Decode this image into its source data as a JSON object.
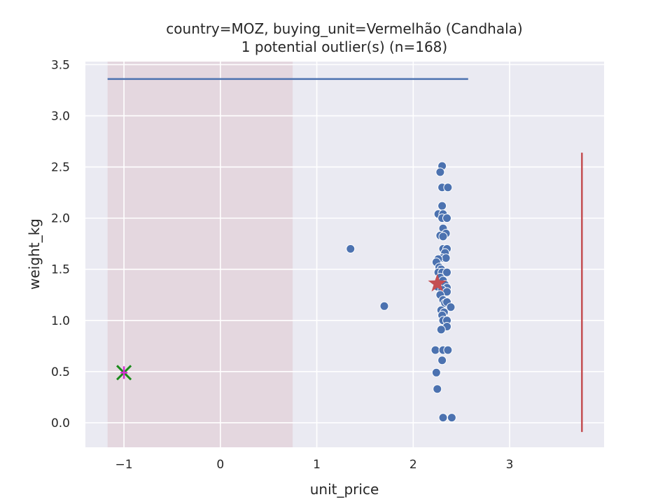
{
  "chart_data": {
    "type": "scatter",
    "title_line1": "country=MOZ, buying_unit=Vermelhão (Candhala)",
    "title_line2": "1 potential outlier(s) (n=168)",
    "xlabel": "unit_price",
    "ylabel": "weight_kg",
    "xlim": [
      -1.4,
      3.98
    ],
    "ylim": [
      -0.24,
      3.53
    ],
    "x_ticks": [
      -1,
      0,
      1,
      2,
      3
    ],
    "x_tick_labels": [
      "−1",
      "0",
      "1",
      "2",
      "3"
    ],
    "y_ticks": [
      0.0,
      0.5,
      1.0,
      1.5,
      2.0,
      2.5,
      3.0,
      3.5
    ],
    "y_tick_labels": [
      "0.0",
      "0.5",
      "1.0",
      "1.5",
      "2.0",
      "2.5",
      "3.0",
      "3.5"
    ],
    "grid": true,
    "shaded_x_range": [
      -1.17,
      0.75
    ],
    "horizontal_line": {
      "y": 3.36,
      "x_from": -1.17,
      "x_to": 2.57
    },
    "vertical_line": {
      "x": 3.75,
      "y_from": -0.09,
      "y_to": 2.64
    },
    "points": [
      {
        "x": 2.3,
        "y": 2.51
      },
      {
        "x": 2.28,
        "y": 2.45
      },
      {
        "x": 2.3,
        "y": 2.3
      },
      {
        "x": 2.36,
        "y": 2.3
      },
      {
        "x": 2.3,
        "y": 2.12
      },
      {
        "x": 2.26,
        "y": 2.04
      },
      {
        "x": 2.31,
        "y": 2.04
      },
      {
        "x": 2.3,
        "y": 2.0
      },
      {
        "x": 2.35,
        "y": 2.0
      },
      {
        "x": 2.31,
        "y": 1.9
      },
      {
        "x": 2.34,
        "y": 1.85
      },
      {
        "x": 2.28,
        "y": 1.83
      },
      {
        "x": 2.31,
        "y": 1.82
      },
      {
        "x": 1.35,
        "y": 1.7
      },
      {
        "x": 2.31,
        "y": 1.7
      },
      {
        "x": 2.35,
        "y": 1.7
      },
      {
        "x": 2.33,
        "y": 1.66
      },
      {
        "x": 2.3,
        "y": 1.61
      },
      {
        "x": 2.34,
        "y": 1.61
      },
      {
        "x": 2.26,
        "y": 1.6
      },
      {
        "x": 2.24,
        "y": 1.57
      },
      {
        "x": 2.27,
        "y": 1.52
      },
      {
        "x": 2.29,
        "y": 1.5
      },
      {
        "x": 2.26,
        "y": 1.47
      },
      {
        "x": 2.3,
        "y": 1.47
      },
      {
        "x": 2.35,
        "y": 1.47
      },
      {
        "x": 2.28,
        "y": 1.42
      },
      {
        "x": 2.31,
        "y": 1.39
      },
      {
        "x": 2.33,
        "y": 1.35
      },
      {
        "x": 2.25,
        "y": 1.33
      },
      {
        "x": 2.35,
        "y": 1.32
      },
      {
        "x": 2.3,
        "y": 1.3
      },
      {
        "x": 2.35,
        "y": 1.28
      },
      {
        "x": 2.28,
        "y": 1.25
      },
      {
        "x": 2.31,
        "y": 1.2
      },
      {
        "x": 2.33,
        "y": 1.17
      },
      {
        "x": 2.35,
        "y": 1.18
      },
      {
        "x": 1.7,
        "y": 1.14
      },
      {
        "x": 2.29,
        "y": 1.1
      },
      {
        "x": 2.39,
        "y": 1.13
      },
      {
        "x": 2.32,
        "y": 1.08
      },
      {
        "x": 2.3,
        "y": 1.05
      },
      {
        "x": 2.31,
        "y": 1.0
      },
      {
        "x": 2.35,
        "y": 1.0
      },
      {
        "x": 2.35,
        "y": 0.94
      },
      {
        "x": 2.29,
        "y": 0.91
      },
      {
        "x": 2.23,
        "y": 0.71
      },
      {
        "x": 2.31,
        "y": 0.71
      },
      {
        "x": 2.36,
        "y": 0.71
      },
      {
        "x": 2.3,
        "y": 0.61
      },
      {
        "x": 2.24,
        "y": 0.49
      },
      {
        "x": 2.25,
        "y": 0.33
      },
      {
        "x": 2.31,
        "y": 0.05
      },
      {
        "x": 2.4,
        "y": 0.05
      }
    ],
    "star_marker": {
      "x": 2.25,
      "y": 1.36
    },
    "cross_marker": {
      "x": -1.0,
      "y": 0.49
    },
    "colors": {
      "plot_background": "#eaeaf2",
      "grid": "#ffffff",
      "shaded_region": "#e4d7df",
      "points": "#4c72b0",
      "horizontal_line": "#4c72b0",
      "vertical_line": "#c44e52",
      "star": "#c44e52",
      "cross_outer": "#1a8a1a",
      "cross_inner": "#d62fd6"
    }
  }
}
